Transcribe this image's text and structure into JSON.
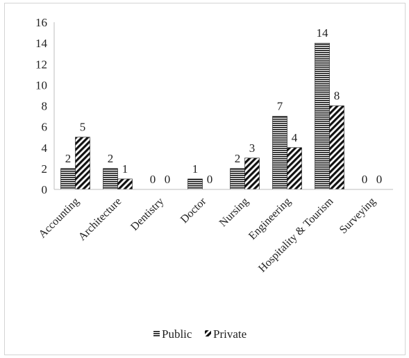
{
  "chart_data": {
    "type": "bar",
    "categories": [
      "Accounting",
      "Architecture",
      "Dentistry",
      "Doctor",
      "Nursing",
      "Engineering",
      "Hospitality & Tourism",
      "Surveying"
    ],
    "series": [
      {
        "name": "Public",
        "values": [
          2,
          2,
          0,
          1,
          2,
          7,
          14,
          0
        ],
        "pattern": "horizontal-stripes"
      },
      {
        "name": "Private",
        "values": [
          5,
          1,
          0,
          0,
          3,
          4,
          8,
          0
        ],
        "pattern": "diagonal-stripes"
      }
    ],
    "y_ticks": [
      "0",
      "2",
      "4",
      "6",
      "8",
      "10",
      "12",
      "14",
      "16"
    ],
    "ylim": [
      0,
      16
    ],
    "data_labels": true,
    "grid": false,
    "legend_position": "bottom",
    "title": "",
    "xlabel": "",
    "ylabel": ""
  }
}
